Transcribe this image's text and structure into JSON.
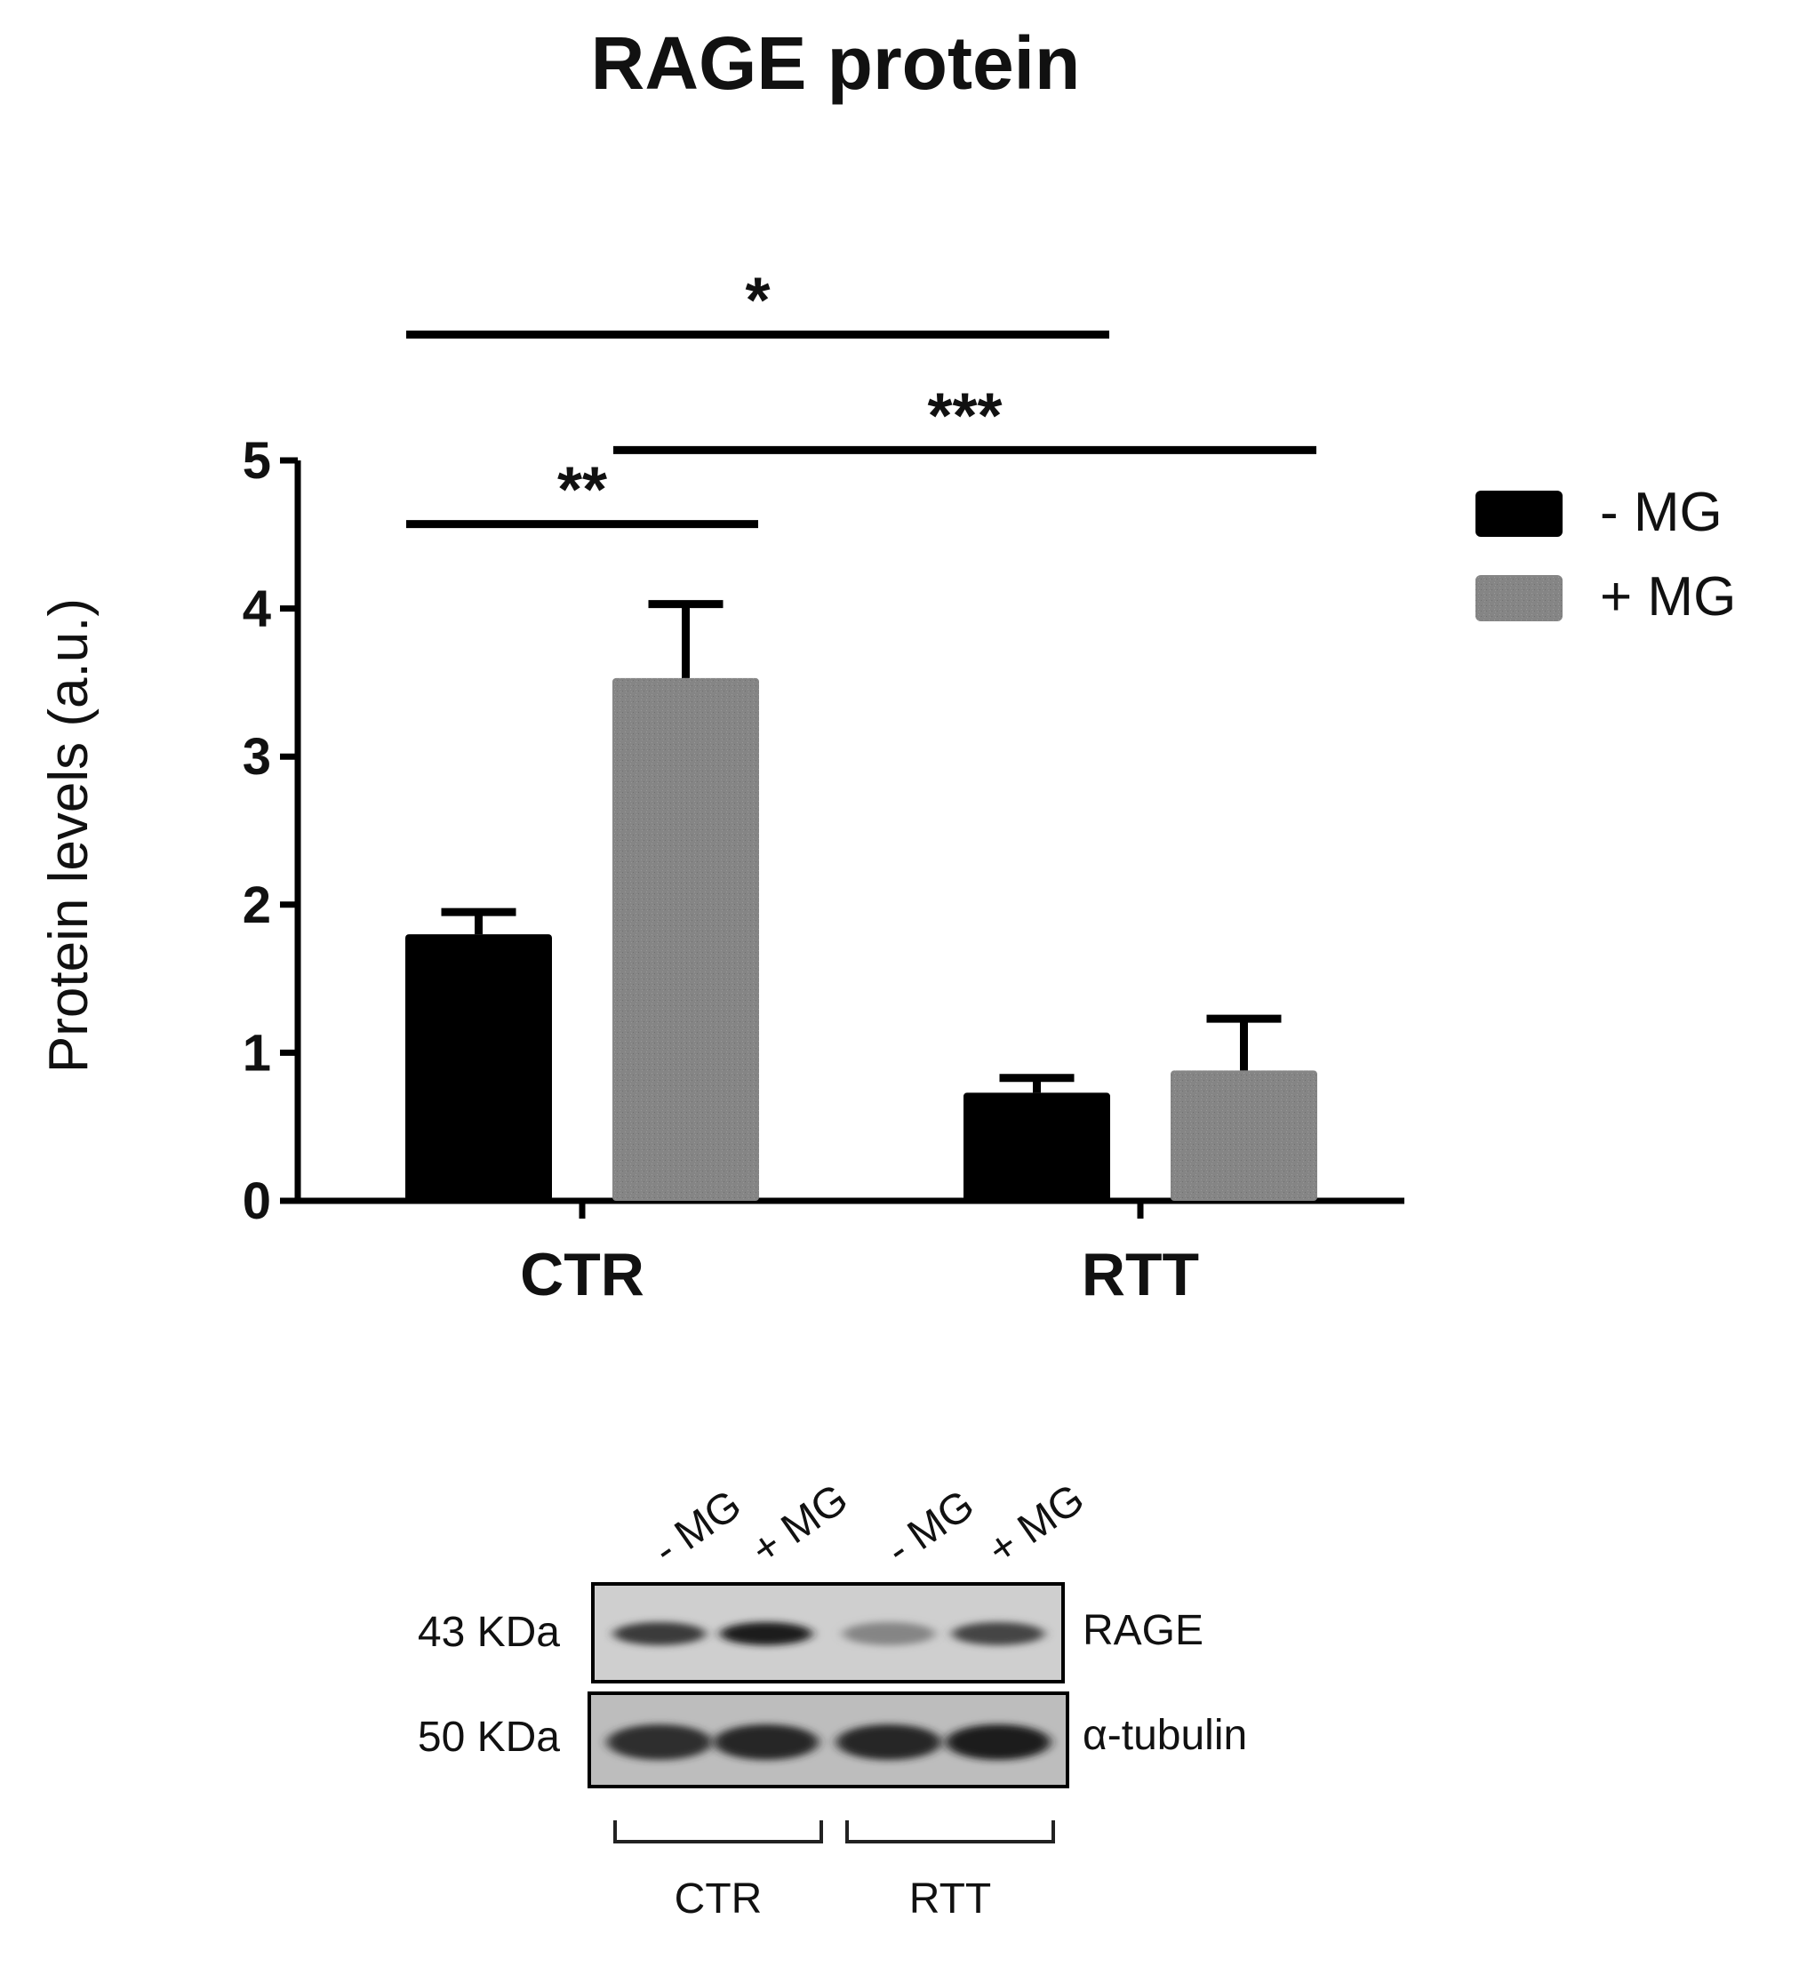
{
  "chart_data": {
    "type": "bar",
    "title": "RAGE protein",
    "xlabel": "",
    "ylabel": "Protein levels (a.u.)",
    "ylim": [
      0,
      5
    ],
    "yticks": [
      "0",
      "1",
      "2",
      "3",
      "4",
      "5"
    ],
    "categories": [
      "CTR",
      "RTT"
    ],
    "series": [
      {
        "name": "- MG",
        "values": [
          1.8,
          0.73
        ],
        "errors": [
          0.15,
          0.1
        ],
        "color": "#000000"
      },
      {
        "name": "+ MG",
        "values": [
          3.53,
          0.88
        ],
        "errors": [
          0.5,
          0.35
        ],
        "color": "#808080"
      }
    ],
    "legend_position": "right",
    "grid": false,
    "significance": [
      {
        "label": "*",
        "from": [
          0,
          0
        ],
        "to": [
          1,
          0
        ],
        "y": 5.85
      },
      {
        "label": "***",
        "from": [
          0,
          1
        ],
        "to": [
          1,
          1
        ],
        "y": 5.07
      },
      {
        "label": "**",
        "from": [
          0,
          0
        ],
        "to": [
          0,
          1
        ],
        "y": 4.57
      }
    ]
  },
  "blot": {
    "lane_labels": [
      "- MG",
      "+ MG",
      "- MG",
      "+ MG"
    ],
    "lane_intensity": {
      "rage": [
        0.8,
        0.95,
        0.45,
        0.75
      ],
      "tubulin": [
        0.85,
        0.9,
        0.9,
        0.95
      ]
    },
    "rows": [
      {
        "size": "43 KDa",
        "label": "RAGE"
      },
      {
        "size": "50 KDa",
        "label": "α-tubulin"
      }
    ],
    "groups": [
      "CTR",
      "RTT"
    ]
  }
}
